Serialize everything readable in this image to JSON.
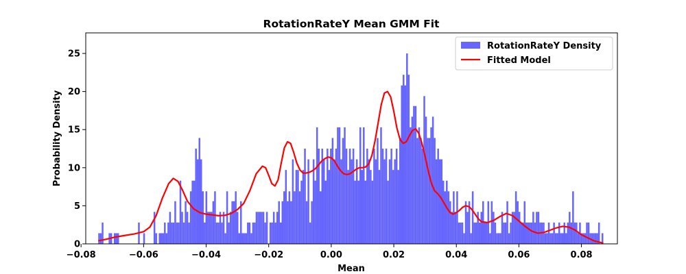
{
  "chart_data": {
    "type": "bar",
    "title": "RotationRateY Mean GMM Fit",
    "xlabel": "Mean",
    "ylabel": "Probability Density",
    "xlim": [
      -0.0785,
      0.0915
    ],
    "ylim": [
      0,
      27.7
    ],
    "x_ticks": [
      -0.08,
      -0.06,
      -0.04,
      -0.02,
      0.0,
      0.02,
      0.04,
      0.06,
      0.08
    ],
    "x_tick_labels": [
      "−0.08",
      "−0.06",
      "−0.04",
      "−0.02",
      "0.00",
      "0.02",
      "0.04",
      "0.06",
      "0.08"
    ],
    "y_ticks": [
      0,
      5,
      10,
      15,
      20,
      25
    ],
    "y_tick_labels": [
      "0",
      "5",
      "10",
      "15",
      "20",
      "25"
    ],
    "grid": false,
    "legend_position": "top-right",
    "colors": {
      "histogram": "#6666ff",
      "fit": "#ff0000"
    },
    "series": [
      {
        "name": "RotationRateY Density",
        "kind": "histogram",
        "bins": 300,
        "x_range": [
          -0.0745,
          0.087
        ],
        "values": [
          1.4,
          1.4,
          2.8,
          0,
          0,
          0,
          1.4,
          1.4,
          0,
          1.4,
          1.4,
          1.4,
          0,
          0,
          0,
          0,
          0,
          0,
          0,
          0,
          0,
          0,
          0,
          2.8,
          0,
          0,
          1.4,
          0,
          0,
          0,
          0,
          0,
          4.2,
          1.4,
          0,
          1.4,
          1.4,
          1.4,
          2.8,
          1.4,
          2.8,
          4.2,
          2.8,
          2.8,
          5.6,
          2.8,
          2.8,
          8.3,
          4.2,
          2.8,
          5.6,
          4.2,
          2.8,
          6.9,
          8.3,
          8.3,
          12.5,
          11.1,
          13.9,
          11.1,
          6.9,
          2.8,
          6.9,
          4.2,
          4.2,
          4.2,
          5.6,
          6.9,
          2.8,
          2.8,
          4.2,
          2.8,
          4.2,
          1.4,
          6.9,
          2.8,
          4.2,
          5.6,
          5.6,
          6.9,
          4.2,
          1.4,
          5.6,
          1.4,
          1.4,
          1.4,
          2.8,
          2.8,
          1.4,
          2.8,
          2.8,
          4.2,
          4.2,
          4.2,
          4.2,
          4.2,
          2.8,
          4.2,
          0,
          2.8,
          2.8,
          4.2,
          2.8,
          4.2,
          5.6,
          2.8,
          5.6,
          6.9,
          9.7,
          5.6,
          6.9,
          5.6,
          11.1,
          6.9,
          9.7,
          9.7,
          6.9,
          8.3,
          9.7,
          12.5,
          5.6,
          11.1,
          2.8,
          5.6,
          11.1,
          8.3,
          15.3,
          12.5,
          6.9,
          12.5,
          11.1,
          8.3,
          12.5,
          9.7,
          12.5,
          13.9,
          11.1,
          12.5,
          15.3,
          15.3,
          11.1,
          13.9,
          15.3,
          12.5,
          9.7,
          12.5,
          11.1,
          12.5,
          8.3,
          11.1,
          8.3,
          15.3,
          9.7,
          15.3,
          8.3,
          12.5,
          11.1,
          9.7,
          8.3,
          12.5,
          11.1,
          13.9,
          9.7,
          15.3,
          12.5,
          11.1,
          12.5,
          8.3,
          11.1,
          12.5,
          9.7,
          11.1,
          12.5,
          9.7,
          13.9,
          20.8,
          22.2,
          20.8,
          25.0,
          22.2,
          15.3,
          16.7,
          18.1,
          18.1,
          13.9,
          15.3,
          13.9,
          12.5,
          19.4,
          16.7,
          13.9,
          13.9,
          15.3,
          16.7,
          13.9,
          11.1,
          12.5,
          11.1,
          11.1,
          8.3,
          6.9,
          8.3,
          6.9,
          5.6,
          4.2,
          6.9,
          4.2,
          6.9,
          2.8,
          2.8,
          2.8,
          1.4,
          5.6,
          4.2,
          5.6,
          1.4,
          6.9,
          2.8,
          2.8,
          4.2,
          2.8,
          4.2,
          5.6,
          2.8,
          2.8,
          5.6,
          1.4,
          5.6,
          4.2,
          2.8,
          1.4,
          1.4,
          1.4,
          4.2,
          2.8,
          2.8,
          5.6,
          1.4,
          2.8,
          4.2,
          4.2,
          6.9,
          5.6,
          4.2,
          2.8,
          2.8,
          5.6,
          2.8,
          2.8,
          2.8,
          2.8,
          4.2,
          2.8,
          4.2,
          4.2,
          2.8,
          2.8,
          2.8,
          1.4,
          1.4,
          2.8,
          1.4,
          1.4,
          2.8,
          1.4,
          1.4,
          2.8,
          1.4,
          1.4,
          2.8,
          1.4,
          2.8,
          4.2,
          2.8,
          6.9,
          2.8,
          2.8,
          1.4,
          2.8,
          1.4,
          1.4,
          1.4,
          2.8,
          2.8,
          1.4,
          1.4,
          1.4,
          1.4,
          1.4,
          2.8,
          0,
          1.4
        ]
      },
      {
        "name": "Fitted Model",
        "kind": "line",
        "x": [
          -0.0745,
          -0.072,
          -0.069,
          -0.066,
          -0.063,
          -0.06,
          -0.058,
          -0.056,
          -0.054,
          -0.052,
          -0.0505,
          -0.049,
          -0.0475,
          -0.046,
          -0.044,
          -0.042,
          -0.04,
          -0.038,
          -0.036,
          -0.034,
          -0.032,
          -0.03,
          -0.028,
          -0.026,
          -0.024,
          -0.022,
          -0.021,
          -0.02,
          -0.019,
          -0.018,
          -0.017,
          -0.016,
          -0.015,
          -0.014,
          -0.013,
          -0.012,
          -0.011,
          -0.01,
          -0.009,
          -0.008,
          -0.007,
          -0.006,
          -0.005,
          -0.004,
          -0.003,
          -0.002,
          -0.001,
          0.0,
          0.001,
          0.002,
          0.003,
          0.004,
          0.005,
          0.006,
          0.007,
          0.008,
          0.009,
          0.01,
          0.011,
          0.012,
          0.013,
          0.014,
          0.015,
          0.016,
          0.017,
          0.018,
          0.019,
          0.02,
          0.021,
          0.022,
          0.023,
          0.024,
          0.025,
          0.026,
          0.027,
          0.028,
          0.029,
          0.03,
          0.031,
          0.032,
          0.033,
          0.034,
          0.035,
          0.036,
          0.037,
          0.038,
          0.039,
          0.04,
          0.041,
          0.042,
          0.043,
          0.044,
          0.045,
          0.046,
          0.047,
          0.048,
          0.05,
          0.052,
          0.054,
          0.056,
          0.058,
          0.06,
          0.062,
          0.064,
          0.066,
          0.068,
          0.07,
          0.072,
          0.074,
          0.076,
          0.078,
          0.08,
          0.082,
          0.084,
          0.087
        ],
        "y": [
          0.4,
          0.6,
          0.9,
          1.1,
          1.3,
          1.6,
          2.2,
          3.7,
          6.0,
          7.9,
          8.6,
          8.2,
          7.0,
          5.6,
          4.6,
          4.1,
          3.9,
          3.8,
          3.7,
          3.75,
          4.0,
          4.5,
          5.3,
          7.0,
          9.2,
          10.2,
          10.0,
          9.0,
          7.9,
          7.6,
          8.4,
          10.6,
          12.6,
          13.4,
          13.2,
          12.0,
          10.6,
          9.7,
          9.3,
          9.3,
          9.4,
          9.6,
          9.9,
          10.4,
          10.9,
          11.2,
          11.4,
          11.3,
          10.9,
          10.2,
          9.6,
          9.2,
          9.1,
          9.2,
          9.5,
          9.8,
          10.0,
          10.0,
          10.1,
          10.5,
          11.6,
          13.5,
          15.9,
          18.3,
          19.8,
          20.0,
          19.3,
          17.4,
          15.2,
          13.7,
          13.2,
          13.4,
          14.2,
          14.9,
          15.1,
          14.5,
          13.2,
          11.5,
          9.6,
          8.0,
          7.0,
          6.6,
          6.1,
          5.4,
          4.7,
          4.1,
          3.9,
          4.1,
          4.4,
          4.8,
          5.0,
          4.9,
          4.5,
          3.9,
          3.3,
          2.9,
          2.8,
          3.1,
          3.6,
          4.0,
          3.7,
          3.0,
          2.3,
          1.7,
          1.4,
          1.5,
          1.8,
          2.1,
          2.3,
          2.2,
          1.8,
          1.2,
          0.8,
          0.4,
          0.1
        ]
      }
    ]
  }
}
